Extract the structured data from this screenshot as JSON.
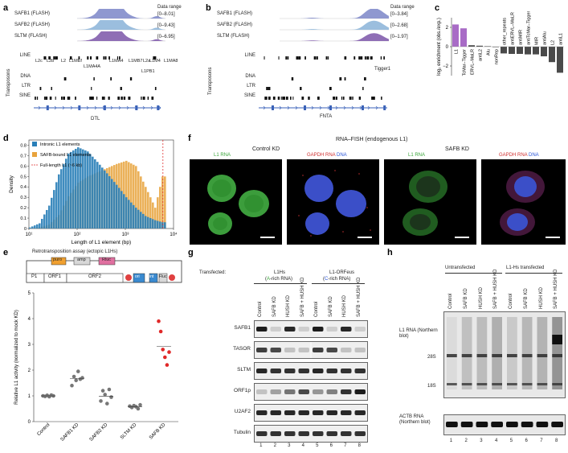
{
  "panels": {
    "a": {
      "label": "a",
      "tracks": [
        {
          "name": "SAFB1 (FLASH)",
          "range": "[0–8.01]"
        },
        {
          "name": "SAFB2 (FLASH)",
          "range": "[0–9.43]"
        },
        {
          "name": "SLTM (FLASH)",
          "range": "[0–6.95]"
        }
      ],
      "data_range_label": "Data range",
      "classes": [
        "LINE",
        "DNA",
        "LTR",
        "SINE"
      ],
      "axis_label": "Transposons",
      "line_elements": [
        "L2c",
        "L2b",
        "L2",
        "L1MEf",
        "L1MA4",
        "L1MB7",
        "L2a",
        "L1M4",
        "L1MA8",
        "L1MA4A",
        "L1PB1"
      ],
      "gene": "DTL"
    },
    "b": {
      "label": "b",
      "tracks": [
        {
          "name": "SAFB1 (FLASH)",
          "range": "[0–3.84]"
        },
        {
          "name": "SAFB2 (FLASH)",
          "range": "[0–2.68]"
        },
        {
          "name": "SLTM (FLASH)",
          "range": "[0–1.97]"
        }
      ],
      "data_range_label": "Data range",
      "classes": [
        "LINE",
        "DNA",
        "LTR",
        "SINE"
      ],
      "axis_label": "Transposons",
      "element": "Tigger1",
      "gene": "FNTA"
    },
    "c": {
      "label": "c",
      "ylabel": "log₂ enrichment (obs./exp.)"
    },
    "d": {
      "label": "d",
      "ylabel": "Density",
      "xlabel": "Length of L1 element (bp)",
      "legend": [
        {
          "label": "Intronic L1 elements",
          "color": "#2a7fb8"
        },
        {
          "label": "SAFB-bound L1 elements",
          "color": "#e8a33c"
        },
        {
          "label": "Full-length L1 (~6 kb)",
          "color": "#e03030"
        }
      ]
    },
    "e": {
      "label": "e",
      "title": "Retrotransposition assay (ectopic L1Hs)",
      "construct": {
        "puro": "puro",
        "amp": "amp",
        "rluc": "Rluc",
        "p1": "P1",
        "orf1": "ORF1",
        "orf2": "ORF2",
        "ori": "ori",
        "in": "int",
        "fluc": "Fluc"
      },
      "ylabel": "Relative L1 activity (normalized to mock KD)"
    },
    "f": {
      "label": "f",
      "title": "RNA–FISH (endogenous L1)",
      "left_cond": "Control KD",
      "right_cond": "SAFB KD",
      "l1": "L1 RNA",
      "gapdh": "GAPDH RNA",
      "dna": "DNA"
    },
    "g": {
      "label": "g",
      "transfected": "Transfected:",
      "group1": "L1Hs",
      "group1_sub_pre": "(",
      "group1_sub_letter": "A",
      "group1_sub_post": "-rich RNA)",
      "group2": "L1-ORFeus",
      "group2_sub_pre": "(",
      "group2_sub_letter": "C",
      "group2_sub_post": "-rich RNA)",
      "columns": [
        "Control",
        "SAFB KD",
        "HUSH KD",
        "SAFB + HUSH KD",
        "Control",
        "SAFB KD",
        "HUSH KD",
        "SAFB + HUSH KD"
      ],
      "rows": [
        "SAFB1",
        "TASOR",
        "SLTM",
        "ORF1p",
        "U2AF2",
        "Tubulin"
      ],
      "lanes": [
        "1",
        "2",
        "3",
        "4",
        "5",
        "6",
        "7",
        "8"
      ]
    },
    "h": {
      "label": "h",
      "group1": "Untransfected",
      "group2": "L1-Hs transfected",
      "columns": [
        "Control",
        "SAFB KD",
        "HUSH KD",
        "SAFB + HUSH KD",
        "Control",
        "SAFB KD",
        "HUSH KD",
        "SAFB + HUSH KD"
      ],
      "l1_label": "L1 RNA (Northern blot)",
      "s28": "28S",
      "s18": "18S",
      "actb": "ACTB RNA (Northern blot)",
      "lanes": [
        "1",
        "2",
        "3",
        "4",
        "5",
        "6",
        "7",
        "8"
      ]
    }
  },
  "chart_data": [
    {
      "type": "bar",
      "panel": "c",
      "categories": [
        "L1",
        "TcMar–Tigger",
        "ERVL–MaLR",
        "antiL2",
        "Alu",
        "nonRep",
        "other_repeats",
        "antiERVL–MaLR",
        "antiMIR",
        "antiTcMar–Tigger",
        "MIR",
        "antiAlu",
        "L2",
        "antiL1"
      ],
      "values": [
        2.3,
        1.9,
        0.15,
        0.1,
        0.05,
        0.0,
        -0.7,
        -0.75,
        -0.75,
        -0.8,
        -0.8,
        -1.0,
        -1.6,
        -2.7
      ],
      "ylim": [
        -3,
        3
      ],
      "yticks": [
        "2",
        "0",
        "−2"
      ],
      "colors": {
        "highlight": "#a86bc6",
        "default": "#4a4a4a"
      },
      "highlight_count": 2
    },
    {
      "type": "area",
      "panel": "d",
      "xscale": "log",
      "xticks": [
        "10¹",
        "10²",
        "10³",
        "10⁴"
      ],
      "yticks": [
        "0",
        "0.1",
        "0.2",
        "0.3",
        "0.4",
        "0.5",
        "0.6",
        "0.7",
        "0.8"
      ],
      "ylim": [
        0,
        0.85
      ],
      "x_log10": [
        1.0,
        1.2,
        1.4,
        1.6,
        1.8,
        2.0,
        2.2,
        2.4,
        2.6,
        2.8,
        3.0,
        3.2,
        3.4,
        3.6,
        3.75
      ],
      "series": [
        {
          "name": "Intronic L1 elements",
          "values": [
            0.01,
            0.05,
            0.22,
            0.52,
            0.72,
            0.78,
            0.74,
            0.64,
            0.53,
            0.42,
            0.3,
            0.2,
            0.12,
            0.08,
            0.06
          ]
        },
        {
          "name": "SAFB-bound L1 elements",
          "values": [
            0.0,
            0.01,
            0.04,
            0.13,
            0.31,
            0.44,
            0.5,
            0.54,
            0.58,
            0.62,
            0.65,
            0.6,
            0.4,
            0.2,
            0.5
          ]
        }
      ],
      "vline_log10": 3.78
    },
    {
      "type": "scatter",
      "panel": "e",
      "categories": [
        "Control",
        "SAFB1 KD",
        "SAFB2 KD",
        "SLTM KD",
        "SAFB KD"
      ],
      "ylim": [
        0,
        5
      ],
      "yticks": [
        "0",
        "1",
        "2",
        "3",
        "4",
        "5"
      ],
      "points": [
        [
          1.0,
          0.98,
          1.02,
          0.97,
          1.03,
          1.0
        ],
        [
          1.4,
          1.75,
          1.6,
          1.95,
          1.65,
          1.7
        ],
        [
          0.8,
          1.2,
          1.05,
          0.7,
          1.25,
          0.95
        ],
        [
          0.6,
          0.55,
          0.62,
          0.58,
          0.5,
          0.65
        ],
        [
          3.9,
          3.5,
          2.8,
          2.5,
          2.2,
          2.7
        ]
      ],
      "means": [
        1.0,
        1.68,
        0.99,
        0.58,
        2.93
      ],
      "colors": [
        "#777777",
        "#777777",
        "#777777",
        "#777777",
        "#e02828"
      ]
    }
  ]
}
